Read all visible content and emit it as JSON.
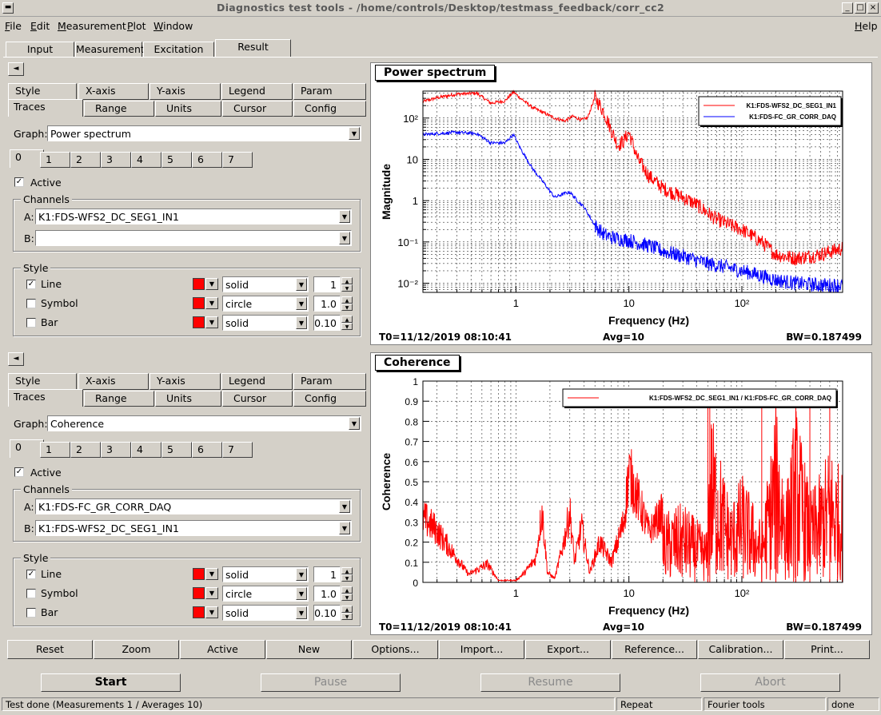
{
  "window": {
    "title": "Diagnostics test tools - /home/controls/Desktop/testmass_feedback/corr_cc2",
    "controls": [
      "_",
      "□",
      "×"
    ]
  },
  "menu": {
    "items": [
      {
        "u": "F",
        "rest": "ile"
      },
      {
        "u": "E",
        "rest": "dit"
      },
      {
        "u": "M",
        "rest": "easurement"
      },
      {
        "u": "P",
        "rest": "lot"
      },
      {
        "u": "W",
        "rest": "indow"
      }
    ],
    "help": {
      "u": "H",
      "rest": "elp"
    }
  },
  "main_tabs": [
    "Input",
    "Measurement",
    "Excitation",
    "Result"
  ],
  "collapse_arrow": "◄",
  "panels": [
    {
      "tabs_row1": [
        "Style",
        "X-axis",
        "Y-axis",
        "Legend",
        "Param"
      ],
      "tabs_row2": [
        "Traces",
        "Range",
        "Units",
        "Cursor",
        "Config"
      ],
      "graph_label": "Graph:",
      "graph_value": "Power spectrum",
      "trace_tabs": [
        "0",
        "1",
        "2",
        "3",
        "4",
        "5",
        "6",
        "7"
      ],
      "active_label": "Active",
      "channels_label": "Channels",
      "channel_a_label": "A:",
      "channel_a": "K1:FDS-WFS2_DC_SEG1_IN1",
      "channel_b_label": "B:",
      "channel_b": "",
      "style_label": "Style",
      "line_label": "Line",
      "line_style": "solid",
      "line_width": "1",
      "symbol_label": "Symbol",
      "symbol_style": "circle",
      "symbol_size": "1.0",
      "bar_label": "Bar",
      "bar_style": "solid",
      "bar_width": "0.10"
    },
    {
      "tabs_row1": [
        "Style",
        "X-axis",
        "Y-axis",
        "Legend",
        "Param"
      ],
      "tabs_row2": [
        "Traces",
        "Range",
        "Units",
        "Cursor",
        "Config"
      ],
      "graph_label": "Graph:",
      "graph_value": "Coherence",
      "trace_tabs": [
        "0",
        "1",
        "2",
        "3",
        "4",
        "5",
        "6",
        "7"
      ],
      "active_label": "Active",
      "channels_label": "Channels",
      "channel_a_label": "A:",
      "channel_a": "K1:FDS-FC_GR_CORR_DAQ",
      "channel_b_label": "B:",
      "channel_b": "K1:FDS-WFS2_DC_SEG1_IN1",
      "style_label": "Style",
      "line_label": "Line",
      "line_style": "solid",
      "line_width": "1",
      "symbol_label": "Symbol",
      "symbol_style": "circle",
      "symbol_size": "1.0",
      "bar_label": "Bar",
      "bar_style": "solid",
      "bar_width": "0.10"
    }
  ],
  "plots": [
    {
      "title": "Power spectrum",
      "xlabel": "Frequency (Hz)",
      "ylabel": "Magnitude",
      "x_ticks": [
        "1",
        "10",
        "10²"
      ],
      "y_ticks": [
        "10⁻²",
        "10⁻¹",
        "1",
        "10",
        "10²"
      ],
      "legend": [
        "K1:FDS-WFS2_DC_SEG1_IN1",
        "K1:FDS-FC_GR_CORR_DAQ"
      ],
      "footer_t0": "T0=11/12/2019 08:10:41",
      "footer_avg": "Avg=10",
      "footer_bw": "BW=0.187499"
    },
    {
      "title": "Coherence",
      "xlabel": "Frequency (Hz)",
      "ylabel": "Coherence",
      "x_ticks": [
        "1",
        "10",
        "10²"
      ],
      "y_ticks": [
        "0",
        "0.1",
        "0.2",
        "0.3",
        "0.4",
        "0.5",
        "0.6",
        "0.7",
        "0.8",
        "0.9",
        "1"
      ],
      "legend": [
        "K1:FDS-WFS2_DC_SEG1_IN1 / K1:FDS-FC_GR_CORR_DAQ"
      ],
      "footer_t0": "T0=11/12/2019 08:10:41",
      "footer_avg": "Avg=10",
      "footer_bw": "BW=0.187499"
    }
  ],
  "chart_data": [
    {
      "type": "line",
      "title": "Power spectrum",
      "xlabel": "Frequency (Hz)",
      "ylabel": "Magnitude",
      "xscale": "log",
      "yscale": "log",
      "xlim": [
        0.15,
        780
      ],
      "ylim": [
        0.006,
        450
      ],
      "grid": true,
      "legend_position": "top-right",
      "series": [
        {
          "name": "K1:FDS-WFS2_DC_SEG1_IN1",
          "color": "#ff0000",
          "x": [
            0.15,
            0.2,
            0.3,
            0.45,
            0.6,
            0.8,
            0.95,
            1.1,
            1.4,
            1.8,
            2.2,
            2.7,
            3.2,
            3.8,
            4.3,
            5.0,
            6.0,
            7.0,
            8.0,
            9.0,
            10.0,
            12,
            15,
            20,
            30,
            40,
            50,
            60,
            80,
            100,
            150,
            200,
            300,
            500,
            780
          ],
          "y": [
            250,
            310,
            380,
            400,
            230,
            260,
            430,
            300,
            180,
            130,
            100,
            85,
            110,
            90,
            100,
            320,
            140,
            50,
            22,
            28,
            45,
            10,
            4.0,
            2.0,
            1.2,
            0.8,
            0.5,
            0.35,
            0.25,
            0.2,
            0.1,
            0.05,
            0.04,
            0.05,
            0.07
          ]
        },
        {
          "name": "K1:FDS-FC_GR_CORR_DAQ",
          "color": "#0000ff",
          "x": [
            0.15,
            0.3,
            0.45,
            0.6,
            0.8,
            0.95,
            1.1,
            1.4,
            1.8,
            2.2,
            2.7,
            3.0,
            3.5,
            4.0,
            5.0,
            6.0,
            7.0,
            8.0,
            10,
            15,
            20,
            30,
            50,
            70,
            100,
            150,
            200,
            300,
            500,
            780
          ],
          "y": [
            40,
            45,
            42,
            25,
            25,
            40,
            18,
            6,
            2.5,
            1.2,
            1.5,
            1.6,
            1.0,
            0.7,
            0.25,
            0.15,
            0.13,
            0.12,
            0.11,
            0.08,
            0.06,
            0.045,
            0.03,
            0.025,
            0.02,
            0.015,
            0.012,
            0.01,
            0.009,
            0.009
          ]
        }
      ]
    },
    {
      "type": "line",
      "title": "Coherence",
      "xlabel": "Frequency (Hz)",
      "ylabel": "Coherence",
      "xscale": "log",
      "yscale": "linear",
      "xlim": [
        0.15,
        780
      ],
      "ylim": [
        0,
        1
      ],
      "grid": true,
      "legend_position": "top-right",
      "series": [
        {
          "name": "K1:FDS-WFS2_DC_SEG1_IN1 / K1:FDS-FC_GR_CORR_DAQ",
          "color": "#ff0000",
          "x": [
            0.15,
            0.19,
            0.25,
            0.38,
            0.56,
            0.7,
            0.85,
            1.0,
            1.2,
            1.5,
            1.7,
            1.9,
            2.2,
            2.6,
            3.0,
            3.3,
            3.8,
            4.5,
            5.5,
            7.0,
            9.0,
            10.0,
            15,
            20,
            30,
            50,
            52,
            80,
            100,
            150,
            200,
            250,
            300,
            400,
            500,
            600,
            780
          ],
          "y": [
            0.32,
            0.27,
            0.18,
            0.04,
            0.09,
            0.01,
            0.01,
            0.01,
            0.05,
            0.12,
            0.36,
            0.05,
            0.02,
            0.18,
            0.35,
            0.1,
            0.28,
            0.05,
            0.2,
            0.1,
            0.3,
            0.55,
            0.25,
            0.35,
            0.4,
            0.25,
            0.9,
            0.4,
            0.55,
            0.3,
            0.9,
            0.5,
            0.9,
            0.45,
            0.55,
            0.7,
            0.55
          ]
        }
      ]
    }
  ],
  "bottom_buttons": [
    "Reset",
    "Zoom",
    "Active",
    "New",
    "Options...",
    "Import...",
    "Export...",
    "Reference...",
    "Calibration...",
    "Print..."
  ],
  "run_buttons": [
    "Start",
    "Pause",
    "Resume",
    "Abort"
  ],
  "statusbar": [
    "Test done (Measurements 1 / Averages 10)",
    "Repeat",
    "Fourier tools",
    "done"
  ]
}
